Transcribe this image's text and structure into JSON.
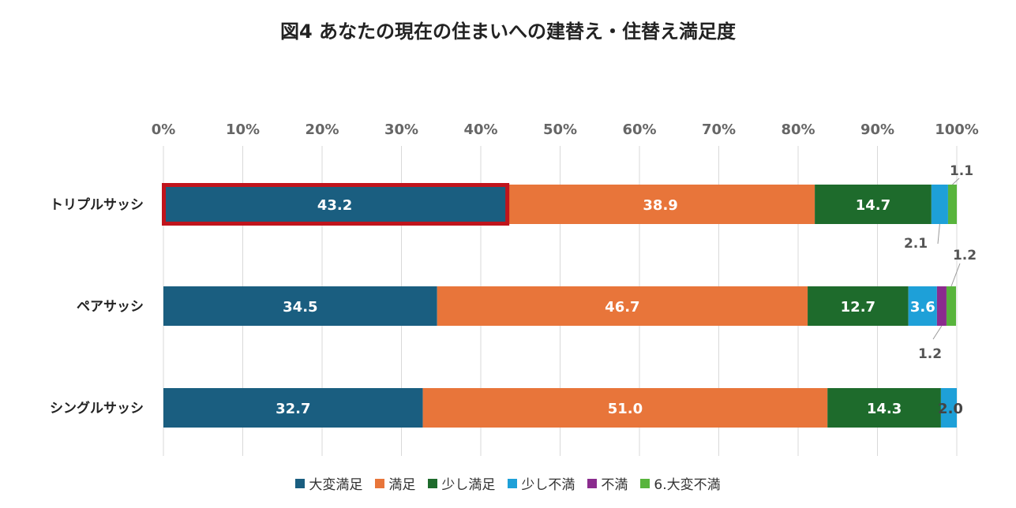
{
  "chart_data": {
    "type": "bar",
    "orientation": "horizontal",
    "stacked": true,
    "title": "図4 あなたの現在の住まいへの建替え・住替え満足度",
    "xlabel": "",
    "ylabel": "",
    "xlim": [
      0,
      100
    ],
    "x_ticks": [
      "0%",
      "10%",
      "20%",
      "30%",
      "40%",
      "50%",
      "60%",
      "70%",
      "80%",
      "90%",
      "100%"
    ],
    "grid": true,
    "legend_position": "bottom",
    "categories": [
      "トリプルサッシ",
      "ペアサッシ",
      "シングルサッシ"
    ],
    "series": [
      {
        "name": "大変満足",
        "color": "#1a5e80",
        "values": [
          43.2,
          34.5,
          32.7
        ],
        "labels": [
          "43.2",
          "34.5",
          "32.7"
        ]
      },
      {
        "name": "満足",
        "color": "#e8753a",
        "values": [
          38.9,
          46.7,
          51.0
        ],
        "labels": [
          "38.9",
          "46.7",
          "51.0"
        ]
      },
      {
        "name": "少し満足",
        "color": "#1e6b2c",
        "values": [
          14.7,
          12.7,
          14.3
        ],
        "labels": [
          "14.7",
          "12.7",
          "14.3"
        ]
      },
      {
        "name": "少し不満",
        "color": "#1ea0d8",
        "values": [
          2.1,
          3.6,
          2.0
        ],
        "labels": [
          "2.1",
          "3.6",
          "2.0"
        ]
      },
      {
        "name": "不満",
        "color": "#8b2c8e",
        "values": [
          0,
          1.2,
          0
        ],
        "labels": [
          "",
          "1.2",
          ""
        ]
      },
      {
        "name": "6.大変不満",
        "color": "#58b43c",
        "values": [
          1.1,
          1.2,
          0
        ],
        "labels": [
          "1.1",
          "1.2",
          ""
        ]
      }
    ],
    "highlight": {
      "category": "トリプルサッシ",
      "series": "大変満足",
      "color": "#c0141c"
    }
  }
}
